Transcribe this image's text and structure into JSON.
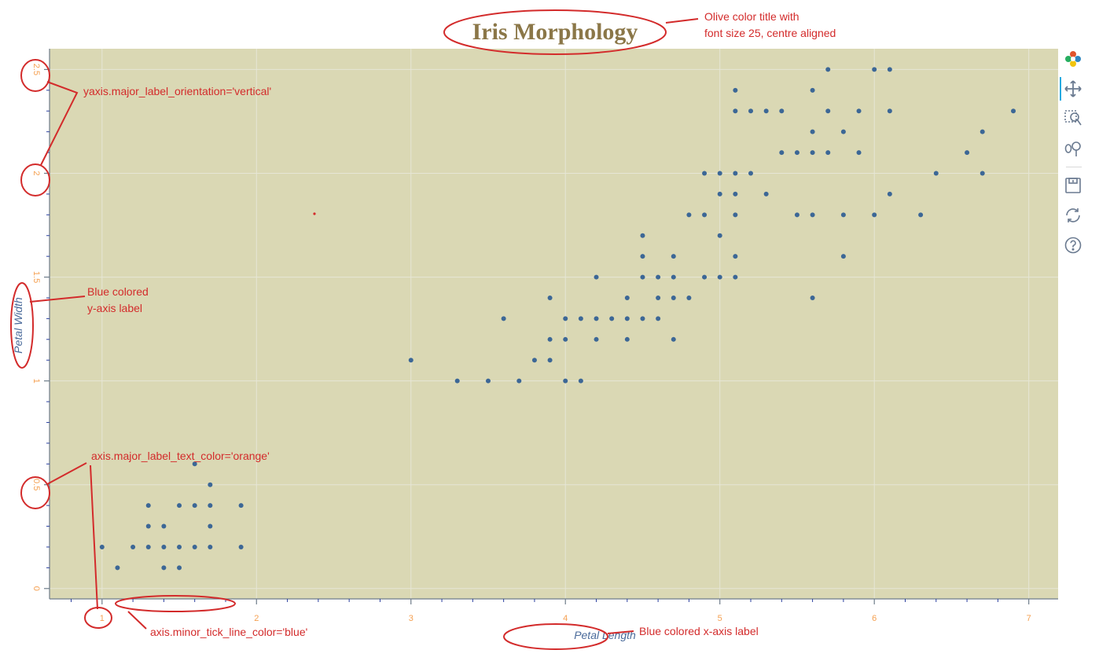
{
  "chart_data": {
    "type": "scatter",
    "title": "Iris Morphology",
    "xlabel": "Petal Length",
    "ylabel": "Petal Width",
    "xlim": [
      0.66,
      7.19
    ],
    "ylim": [
      -0.05,
      2.6
    ],
    "x_ticks": [
      "1",
      "2",
      "3",
      "4",
      "5",
      "6",
      "7"
    ],
    "y_ticks": [
      "0",
      "0.5",
      "1",
      "1.5",
      "2",
      "2.5"
    ],
    "grid": true,
    "points": [
      [
        1.0,
        0.2
      ],
      [
        1.1,
        0.1
      ],
      [
        1.2,
        0.2
      ],
      [
        1.3,
        0.2
      ],
      [
        1.3,
        0.3
      ],
      [
        1.3,
        0.4
      ],
      [
        1.4,
        0.1
      ],
      [
        1.4,
        0.2
      ],
      [
        1.4,
        0.3
      ],
      [
        1.5,
        0.1
      ],
      [
        1.5,
        0.2
      ],
      [
        1.5,
        0.4
      ],
      [
        1.6,
        0.2
      ],
      [
        1.6,
        0.4
      ],
      [
        1.6,
        0.6
      ],
      [
        1.7,
        0.2
      ],
      [
        1.7,
        0.3
      ],
      [
        1.7,
        0.4
      ],
      [
        1.7,
        0.5
      ],
      [
        1.9,
        0.2
      ],
      [
        1.9,
        0.4
      ],
      [
        3.0,
        1.1
      ],
      [
        3.3,
        1.0
      ],
      [
        3.5,
        1.0
      ],
      [
        3.6,
        1.3
      ],
      [
        3.7,
        1.0
      ],
      [
        3.8,
        1.1
      ],
      [
        3.9,
        1.1
      ],
      [
        3.9,
        1.2
      ],
      [
        3.9,
        1.4
      ],
      [
        4.0,
        1.0
      ],
      [
        4.0,
        1.2
      ],
      [
        4.0,
        1.3
      ],
      [
        4.1,
        1.0
      ],
      [
        4.1,
        1.3
      ],
      [
        4.2,
        1.2
      ],
      [
        4.2,
        1.3
      ],
      [
        4.2,
        1.5
      ],
      [
        4.3,
        1.3
      ],
      [
        4.4,
        1.2
      ],
      [
        4.4,
        1.3
      ],
      [
        4.4,
        1.4
      ],
      [
        4.5,
        1.3
      ],
      [
        4.5,
        1.5
      ],
      [
        4.5,
        1.6
      ],
      [
        4.5,
        1.7
      ],
      [
        4.6,
        1.3
      ],
      [
        4.6,
        1.4
      ],
      [
        4.6,
        1.5
      ],
      [
        4.7,
        1.2
      ],
      [
        4.7,
        1.4
      ],
      [
        4.7,
        1.5
      ],
      [
        4.7,
        1.6
      ],
      [
        4.8,
        1.4
      ],
      [
        4.8,
        1.8
      ],
      [
        4.9,
        1.5
      ],
      [
        4.9,
        1.8
      ],
      [
        4.9,
        2.0
      ],
      [
        5.0,
        1.5
      ],
      [
        5.0,
        1.7
      ],
      [
        5.0,
        1.9
      ],
      [
        5.0,
        2.0
      ],
      [
        5.1,
        1.5
      ],
      [
        5.1,
        1.6
      ],
      [
        5.1,
        1.8
      ],
      [
        5.1,
        1.9
      ],
      [
        5.1,
        2.0
      ],
      [
        5.1,
        2.3
      ],
      [
        5.1,
        2.4
      ],
      [
        5.2,
        2.0
      ],
      [
        5.2,
        2.3
      ],
      [
        5.3,
        1.9
      ],
      [
        5.3,
        2.3
      ],
      [
        5.4,
        2.1
      ],
      [
        5.4,
        2.3
      ],
      [
        5.5,
        1.8
      ],
      [
        5.5,
        2.1
      ],
      [
        5.6,
        1.4
      ],
      [
        5.6,
        1.8
      ],
      [
        5.6,
        2.1
      ],
      [
        5.6,
        2.2
      ],
      [
        5.6,
        2.4
      ],
      [
        5.7,
        2.1
      ],
      [
        5.7,
        2.3
      ],
      [
        5.7,
        2.5
      ],
      [
        5.8,
        1.6
      ],
      [
        5.8,
        1.8
      ],
      [
        5.8,
        2.2
      ],
      [
        5.9,
        2.1
      ],
      [
        5.9,
        2.3
      ],
      [
        6.0,
        1.8
      ],
      [
        6.0,
        2.5
      ],
      [
        6.1,
        1.9
      ],
      [
        6.1,
        2.3
      ],
      [
        6.1,
        2.5
      ],
      [
        6.3,
        1.8
      ],
      [
        6.4,
        2.0
      ],
      [
        6.6,
        2.1
      ],
      [
        6.7,
        2.0
      ],
      [
        6.7,
        2.2
      ],
      [
        6.9,
        2.3
      ]
    ],
    "colors": {
      "background": "#dad8b4",
      "point": "#3c6796",
      "title": "#8b7748",
      "tick_label": "#f5a051",
      "axis_label": "#4a6a9a",
      "minor_tick": "#2a3f9f",
      "grid": "#e6e6d6",
      "annotation": "#d32b2b"
    }
  },
  "annotations": [
    "Olive color title with",
    "font size 25, centre aligned",
    "yaxis.major_label_orientation='vertical'",
    "Blue colored",
    "y-axis label",
    "axis.major_label_text_color='orange'",
    "axis.minor_tick_line_color='blue'",
    "Blue colored x-axis label"
  ],
  "toolbar": {
    "tools": [
      "bokeh-logo-icon",
      "pan-icon",
      "box-zoom-icon",
      "wheel-zoom-icon",
      "save-icon",
      "reset-icon",
      "help-icon"
    ]
  }
}
